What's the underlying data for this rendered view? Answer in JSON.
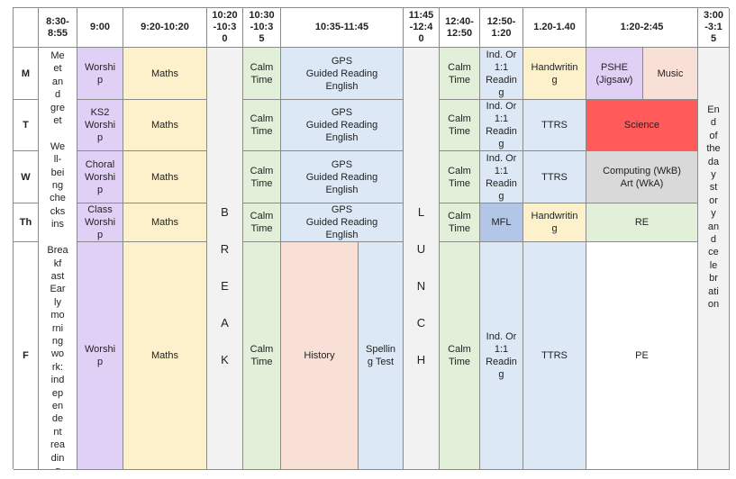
{
  "headers": [
    "",
    "8:30-\n8:55",
    "9:00",
    "9:20-10:20",
    "10:20\n-10:3\n0",
    "10:30\n-10:3\n5",
    "10:35-11:45",
    "11:45\n-12:4\n0",
    "12:40-\n12:50",
    "12:50-\n1:20",
    "1.20-1.40",
    "1:20-2:45",
    "3:00\n-3:1\n5"
  ],
  "days": [
    "M",
    "T",
    "W",
    "Th",
    "F"
  ],
  "arrival": "Me\net\nan\nd\ngre\net\n\nWe\nll-\nbei\nng\nche\ncks\nins\n\nBrea\nkf\nast\nEar\nly\nmo\nrni\nng\nwo\nrk:\nind\nep\nen\nde\nnt\nrea\ndin\ng",
  "worship": [
    "Worshi\np",
    "KS2\nWorshi\np",
    "Choral\nWorshi\np",
    "Class\nWorshi\np",
    "Worshi\np"
  ],
  "maths": "Maths",
  "break_letters": "B\nR\nE\nA\nK",
  "calm": "Calm\nTime",
  "gps": "GPS\nGuided Reading\nEnglish",
  "history": "History",
  "spelling": "Spellin\ng Test",
  "lunch_letters": "L\nU\nN\nC\nH",
  "ind_reading": "Ind. Or\n1:1\nReadin\ng",
  "mfl": "MFL",
  "handwriting": "Handwritin\ng",
  "ttrs": "TTRS",
  "pshe": "PSHE\n(Jigsaw)",
  "music": "Music",
  "science": "Science",
  "computing": "Computing (WkB)\nArt (WkA)",
  "re": "RE",
  "pe": "PE",
  "end_of_day": "En\nd\nof\nthe\nda\ny\nst\nor\ny\nan\nd\nce\nle\nbr\nati\non"
}
